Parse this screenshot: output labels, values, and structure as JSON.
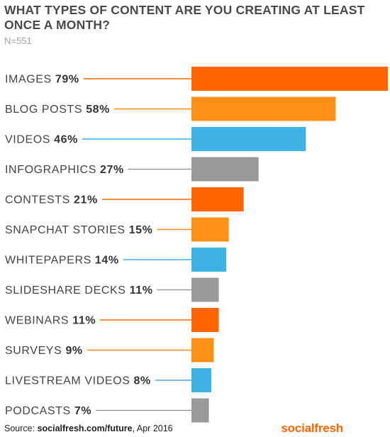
{
  "chart_data": {
    "type": "bar",
    "orientation": "horizontal",
    "title": "WHAT TYPES OF CONTENT ARE YOU CREATING AT LEAST ONCE A MONTH?",
    "subtitle": "N=551",
    "categories": [
      "IMAGES",
      "BLOG POSTS",
      "VIDEOS",
      "INFOGRAPHICS",
      "CONTESTS",
      "SNAPCHAT STORIES",
      "WHITEPAPERS",
      "SLIDESHARE DECKS",
      "WEBINARS",
      "SURVEYS",
      "LIVESTREAM VIDEOS",
      "PODCASTS"
    ],
    "values": [
      79,
      58,
      46,
      27,
      21,
      15,
      14,
      11,
      11,
      9,
      8,
      7
    ],
    "value_labels": [
      "79%",
      "58%",
      "46%",
      "27%",
      "21%",
      "15%",
      "14%",
      "11%",
      "11%",
      "9%",
      "8%",
      "7%"
    ],
    "unit": "%",
    "colors": [
      "#ff6600",
      "#ff9016",
      "#3db2e6",
      "#999999",
      "#ff6600",
      "#ff9016",
      "#3db2e6",
      "#999999",
      "#ff6600",
      "#ff9016",
      "#3db2e6",
      "#999999"
    ],
    "xlim": [
      0,
      79
    ],
    "grid": false,
    "legend": "none"
  },
  "footer": {
    "source_prefix": "Source: ",
    "source_link": "socialfresh.com/future",
    "source_suffix": ", Apr 2016",
    "brand": "socialfresh"
  }
}
